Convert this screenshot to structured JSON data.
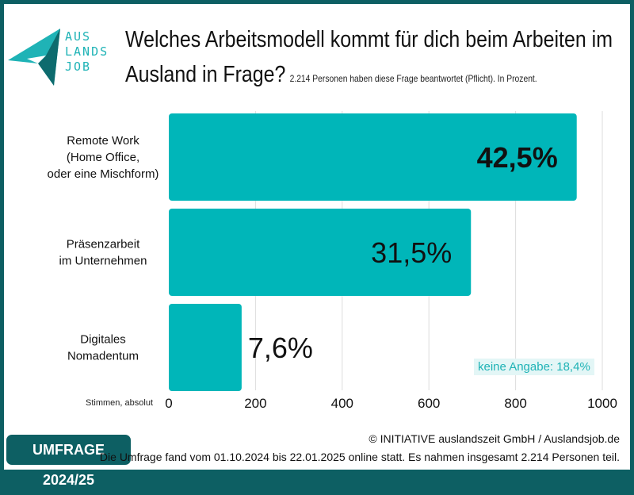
{
  "logo": {
    "text_lines": [
      "AUS",
      "LANDS",
      "JOB"
    ]
  },
  "header": {
    "title": "Welches Arbeitsmodell kommt für dich beim Arbeiten im Ausland in Frage?",
    "subtitle": "2.214 Personen haben diese Frage beantwortet (Pflicht). In Prozent."
  },
  "chart_data": {
    "type": "bar",
    "orientation": "horizontal",
    "categories": [
      [
        "Remote Work",
        "(Home Office,",
        "oder eine Mischform)"
      ],
      [
        "Präsenzarbeit",
        "im Unternehmen"
      ],
      [
        "Digitales",
        "Nomadentum"
      ]
    ],
    "values": [
      941,
      697,
      168
    ],
    "data_labels": [
      "42,5%",
      "31,5%",
      "7,6%"
    ],
    "xlabel": "Stimmen, absolut",
    "xlim": [
      0,
      1000
    ],
    "xticks": [
      "0",
      "200",
      "400",
      "600",
      "800",
      "1000"
    ],
    "tick_values": [
      0,
      200,
      400,
      600,
      800,
      1000
    ],
    "grid": true,
    "bar_color": "#00b6b9",
    "annotation": "keine Angabe: 18,4%"
  },
  "footer": {
    "badge": "UMFRAGE 2024/25",
    "copyright": "© INITIATIVE auslandszeit GmbH / Auslandsjob.de",
    "note": "Die Umfrage fand vom 01.10.2024 bis 22.01.2025 online statt. Es nahmen insgesamt 2.214 Personen teil."
  },
  "colors": {
    "frame": "#0d5f63",
    "accent": "#00b6b9"
  }
}
